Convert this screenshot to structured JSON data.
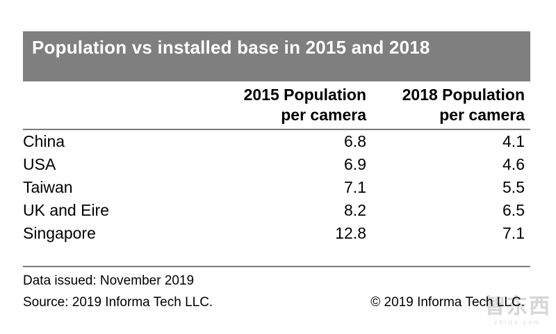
{
  "title": {
    "text": "Population vs installed base in 2015 and 2018"
  },
  "table": {
    "columns": [
      {
        "line1": "2015 Population",
        "line2": "per camera"
      },
      {
        "line1": "2018 Population",
        "line2": "per camera"
      }
    ],
    "rows": [
      {
        "country": "China",
        "value_2015": "6.8",
        "value_2018": "4.1"
      },
      {
        "country": "USA",
        "value_2015": "6.9",
        "value_2018": "4.6"
      },
      {
        "country": "Taiwan",
        "value_2015": "7.1",
        "value_2018": "5.5"
      },
      {
        "country": "UK and Eire",
        "value_2015": "8.2",
        "value_2018": "6.5"
      },
      {
        "country": "Singapore",
        "value_2015": "12.8",
        "value_2018": "7.1"
      }
    ]
  },
  "footer": {
    "data_issued": "Data issued: November 2019",
    "source": "Source: 2019 Informa Tech LLC.",
    "copyright": "© 2019 Informa Tech LLC."
  },
  "watermark": {
    "logo_text": "智东西",
    "domain": "zhidx.com"
  },
  "colors": {
    "title_bar_bg": "#7f7f7f",
    "title_text": "#ffffff",
    "rule": "#7a7a7a",
    "body_text": "#000000",
    "watermark": "#d7d7d7"
  },
  "chart_data": {
    "type": "table",
    "title": "Population vs installed base in 2015 and 2018",
    "categories": [
      "China",
      "USA",
      "Taiwan",
      "UK and Eire",
      "Singapore"
    ],
    "series": [
      {
        "name": "2015 Population per camera",
        "values": [
          6.8,
          6.9,
          7.1,
          8.2,
          12.8
        ]
      },
      {
        "name": "2018 Population per camera",
        "values": [
          4.1,
          4.6,
          5.5,
          6.5,
          7.1
        ]
      }
    ],
    "notes": [
      "Data issued: November 2019",
      "Source: 2019 Informa Tech LLC.",
      "© 2019 Informa Tech LLC."
    ]
  }
}
